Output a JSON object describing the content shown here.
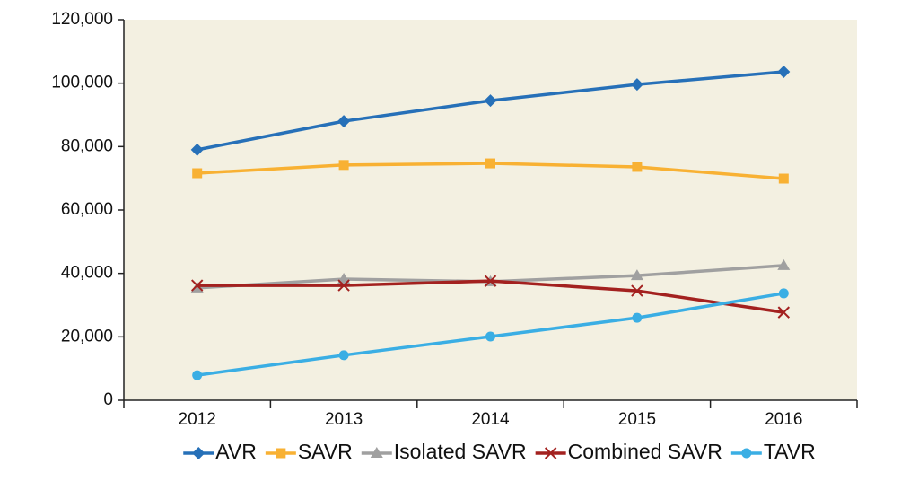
{
  "chart_data": {
    "type": "line",
    "categories": [
      "2012",
      "2013",
      "2014",
      "2015",
      "2016"
    ],
    "series": [
      {
        "name": "AVR",
        "color": "#2670b8",
        "marker": "diamond",
        "values": [
          79000,
          88000,
          94500,
          99600,
          103600
        ]
      },
      {
        "name": "SAVR",
        "color": "#f8b133",
        "marker": "square",
        "values": [
          71600,
          74200,
          74700,
          73600,
          69900
        ]
      },
      {
        "name": "Isolated SAVR",
        "color": "#a0a0a0",
        "marker": "triangle",
        "values": [
          35400,
          38200,
          37400,
          39300,
          42500
        ]
      },
      {
        "name": "Combined SAVR",
        "color": "#a3211f",
        "marker": "x",
        "values": [
          36200,
          36200,
          37600,
          34500,
          27700
        ]
      },
      {
        "name": "TAVR",
        "color": "#3aaee4",
        "marker": "circle",
        "values": [
          7900,
          14200,
          20100,
          26000,
          33700
        ]
      }
    ],
    "ylim": [
      0,
      120000
    ],
    "yticks": [
      0,
      {
        "value": 20000,
        "label": "20,000"
      },
      {
        "value": 40000,
        "label": "40,000"
      },
      {
        "value": 60000,
        "label": "60,000"
      },
      {
        "value": 80000,
        "label": "80,000"
      },
      {
        "value": 100000,
        "label": "100,000"
      },
      {
        "value": 120000,
        "label": "120,000"
      }
    ],
    "plot_background": "#f3f0e1",
    "legend": "bottom"
  }
}
